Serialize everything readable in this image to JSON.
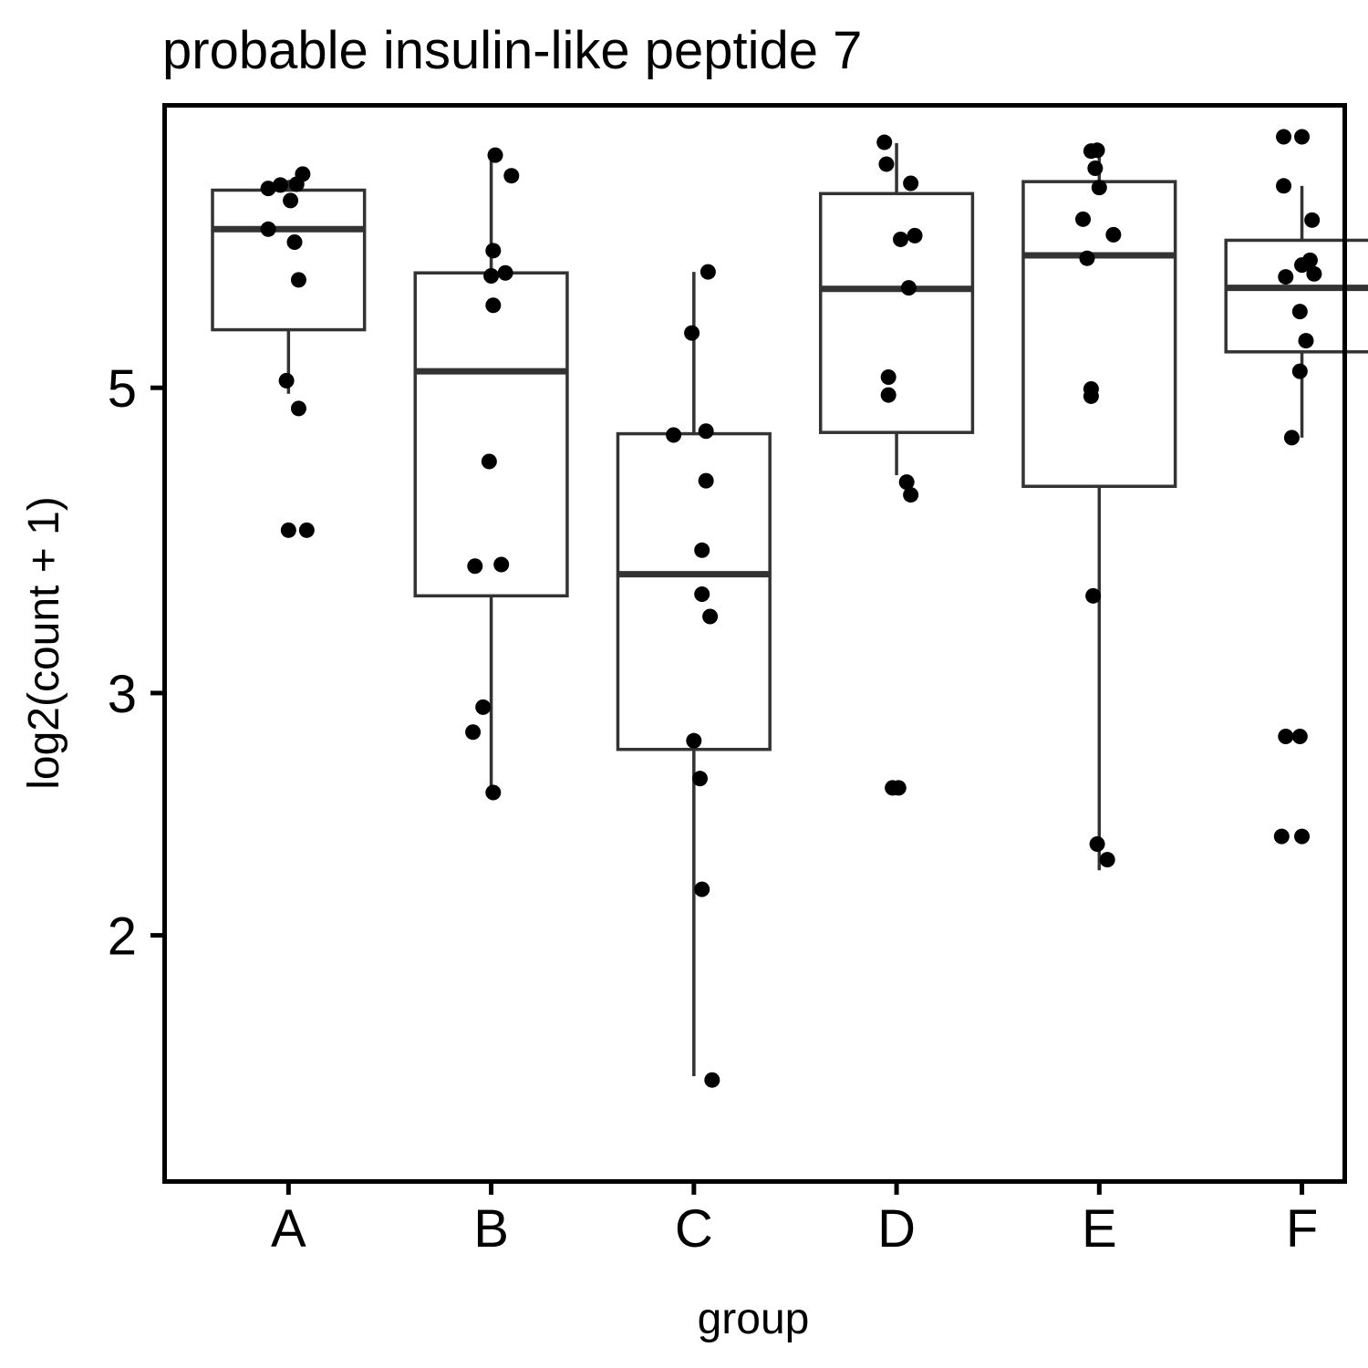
{
  "chart_data": {
    "type": "box",
    "title": "probable insulin-like peptide 7",
    "xlabel": "group",
    "ylabel": "log2(count + 1)",
    "y_scale": "log",
    "ylim": [
      1.42,
      7.61
    ],
    "y_ticks": [
      2,
      3,
      5
    ],
    "categories": [
      "A",
      "B",
      "C",
      "D",
      "E",
      "F"
    ],
    "boxes": [
      {
        "group": "A",
        "whisker_low": 4.95,
        "q1": 5.51,
        "median": 6.52,
        "q3": 6.96,
        "whisker_high": 7.08
      },
      {
        "group": "B",
        "whisker_low": 2.54,
        "q1": 3.53,
        "median": 5.14,
        "q3": 6.06,
        "whisker_high": 7.36
      },
      {
        "group": "C",
        "whisker_low": 1.58,
        "q1": 2.73,
        "median": 3.66,
        "q3": 4.63,
        "whisker_high": 6.07
      },
      {
        "group": "D",
        "whisker_low": 4.32,
        "q1": 4.64,
        "median": 5.9,
        "q3": 6.92,
        "whisker_high": 7.53
      },
      {
        "group": "E",
        "whisker_low": 2.23,
        "q1": 4.24,
        "median": 6.24,
        "q3": 7.06,
        "whisker_high": 7.44
      },
      {
        "group": "F",
        "whisker_low": 4.6,
        "q1": 5.31,
        "median": 5.91,
        "q3": 6.4,
        "whisker_high": 7.01
      }
    ],
    "points": [
      {
        "group": "A",
        "x": -0.1,
        "y": 6.98
      },
      {
        "group": "A",
        "x": -0.04,
        "y": 7.02
      },
      {
        "group": "A",
        "x": 0.04,
        "y": 7.03
      },
      {
        "group": "A",
        "x": 0.07,
        "y": 7.15
      },
      {
        "group": "A",
        "x": 0.01,
        "y": 6.84
      },
      {
        "group": "A",
        "x": -0.1,
        "y": 6.52
      },
      {
        "group": "A",
        "x": 0.03,
        "y": 6.38
      },
      {
        "group": "A",
        "x": 0.05,
        "y": 5.99
      },
      {
        "group": "A",
        "x": -0.01,
        "y": 5.06
      },
      {
        "group": "A",
        "x": 0.05,
        "y": 4.83
      },
      {
        "group": "A",
        "x": 0.0,
        "y": 3.94
      },
      {
        "group": "A",
        "x": 0.09,
        "y": 3.94
      },
      {
        "group": "B",
        "x": 0.02,
        "y": 7.38
      },
      {
        "group": "B",
        "x": 0.1,
        "y": 7.13
      },
      {
        "group": "B",
        "x": 0.01,
        "y": 6.29
      },
      {
        "group": "B",
        "x": 0.07,
        "y": 6.06
      },
      {
        "group": "B",
        "x": 0.0,
        "y": 6.03
      },
      {
        "group": "B",
        "x": 0.01,
        "y": 5.74
      },
      {
        "group": "B",
        "x": -0.01,
        "y": 4.42
      },
      {
        "group": "B",
        "x": -0.08,
        "y": 3.71
      },
      {
        "group": "B",
        "x": 0.05,
        "y": 3.72
      },
      {
        "group": "B",
        "x": -0.04,
        "y": 2.93
      },
      {
        "group": "B",
        "x": -0.09,
        "y": 2.81
      },
      {
        "group": "B",
        "x": 0.01,
        "y": 2.54
      },
      {
        "group": "C",
        "x": 0.07,
        "y": 6.07
      },
      {
        "group": "C",
        "x": -0.01,
        "y": 5.48
      },
      {
        "group": "C",
        "x": -0.1,
        "y": 4.62
      },
      {
        "group": "C",
        "x": 0.06,
        "y": 4.65
      },
      {
        "group": "C",
        "x": 0.06,
        "y": 4.28
      },
      {
        "group": "C",
        "x": 0.04,
        "y": 3.81
      },
      {
        "group": "C",
        "x": 0.04,
        "y": 3.54
      },
      {
        "group": "C",
        "x": 0.08,
        "y": 3.41
      },
      {
        "group": "C",
        "x": 0.0,
        "y": 2.77
      },
      {
        "group": "C",
        "x": 0.03,
        "y": 2.6
      },
      {
        "group": "C",
        "x": 0.04,
        "y": 2.16
      },
      {
        "group": "C",
        "x": 0.09,
        "y": 1.57
      },
      {
        "group": "D",
        "x": -0.06,
        "y": 7.54
      },
      {
        "group": "D",
        "x": -0.05,
        "y": 7.27
      },
      {
        "group": "D",
        "x": 0.07,
        "y": 7.04
      },
      {
        "group": "D",
        "x": 0.02,
        "y": 6.41
      },
      {
        "group": "D",
        "x": 0.09,
        "y": 6.45
      },
      {
        "group": "D",
        "x": 0.06,
        "y": 5.91
      },
      {
        "group": "D",
        "x": -0.04,
        "y": 5.09
      },
      {
        "group": "D",
        "x": -0.04,
        "y": 4.94
      },
      {
        "group": "D",
        "x": 0.05,
        "y": 4.27
      },
      {
        "group": "D",
        "x": 0.07,
        "y": 4.18
      },
      {
        "group": "D",
        "x": -0.02,
        "y": 2.56
      },
      {
        "group": "D",
        "x": 0.01,
        "y": 2.56
      },
      {
        "group": "E",
        "x": -0.01,
        "y": 7.44
      },
      {
        "group": "E",
        "x": -0.04,
        "y": 7.43
      },
      {
        "group": "E",
        "x": -0.02,
        "y": 7.22
      },
      {
        "group": "E",
        "x": 0.0,
        "y": 6.99
      },
      {
        "group": "E",
        "x": -0.08,
        "y": 6.63
      },
      {
        "group": "E",
        "x": 0.07,
        "y": 6.46
      },
      {
        "group": "E",
        "x": -0.06,
        "y": 6.21
      },
      {
        "group": "E",
        "x": -0.04,
        "y": 4.99
      },
      {
        "group": "E",
        "x": -0.04,
        "y": 4.93
      },
      {
        "group": "E",
        "x": -0.03,
        "y": 3.53
      },
      {
        "group": "E",
        "x": -0.01,
        "y": 2.33
      },
      {
        "group": "E",
        "x": 0.04,
        "y": 2.27
      },
      {
        "group": "F",
        "x": -0.09,
        "y": 7.61
      },
      {
        "group": "F",
        "x": 0.0,
        "y": 7.61
      },
      {
        "group": "F",
        "x": -0.09,
        "y": 7.01
      },
      {
        "group": "F",
        "x": 0.05,
        "y": 6.62
      },
      {
        "group": "F",
        "x": 0.04,
        "y": 6.19
      },
      {
        "group": "F",
        "x": 0.0,
        "y": 6.14
      },
      {
        "group": "F",
        "x": -0.08,
        "y": 6.02
      },
      {
        "group": "F",
        "x": 0.06,
        "y": 6.05
      },
      {
        "group": "F",
        "x": -0.01,
        "y": 5.68
      },
      {
        "group": "F",
        "x": 0.02,
        "y": 5.41
      },
      {
        "group": "F",
        "x": -0.01,
        "y": 5.14
      },
      {
        "group": "F",
        "x": -0.05,
        "y": 4.6
      },
      {
        "group": "F",
        "x": -0.08,
        "y": 2.79
      },
      {
        "group": "F",
        "x": -0.01,
        "y": 2.79
      },
      {
        "group": "F",
        "x": -0.1,
        "y": 2.36
      },
      {
        "group": "F",
        "x": 0.0,
        "y": 2.36
      }
    ],
    "colors": {
      "box_line": "#333333",
      "point": "#000000",
      "point_overlap": "#3a3a3a"
    },
    "grid": false,
    "legend": "none"
  }
}
